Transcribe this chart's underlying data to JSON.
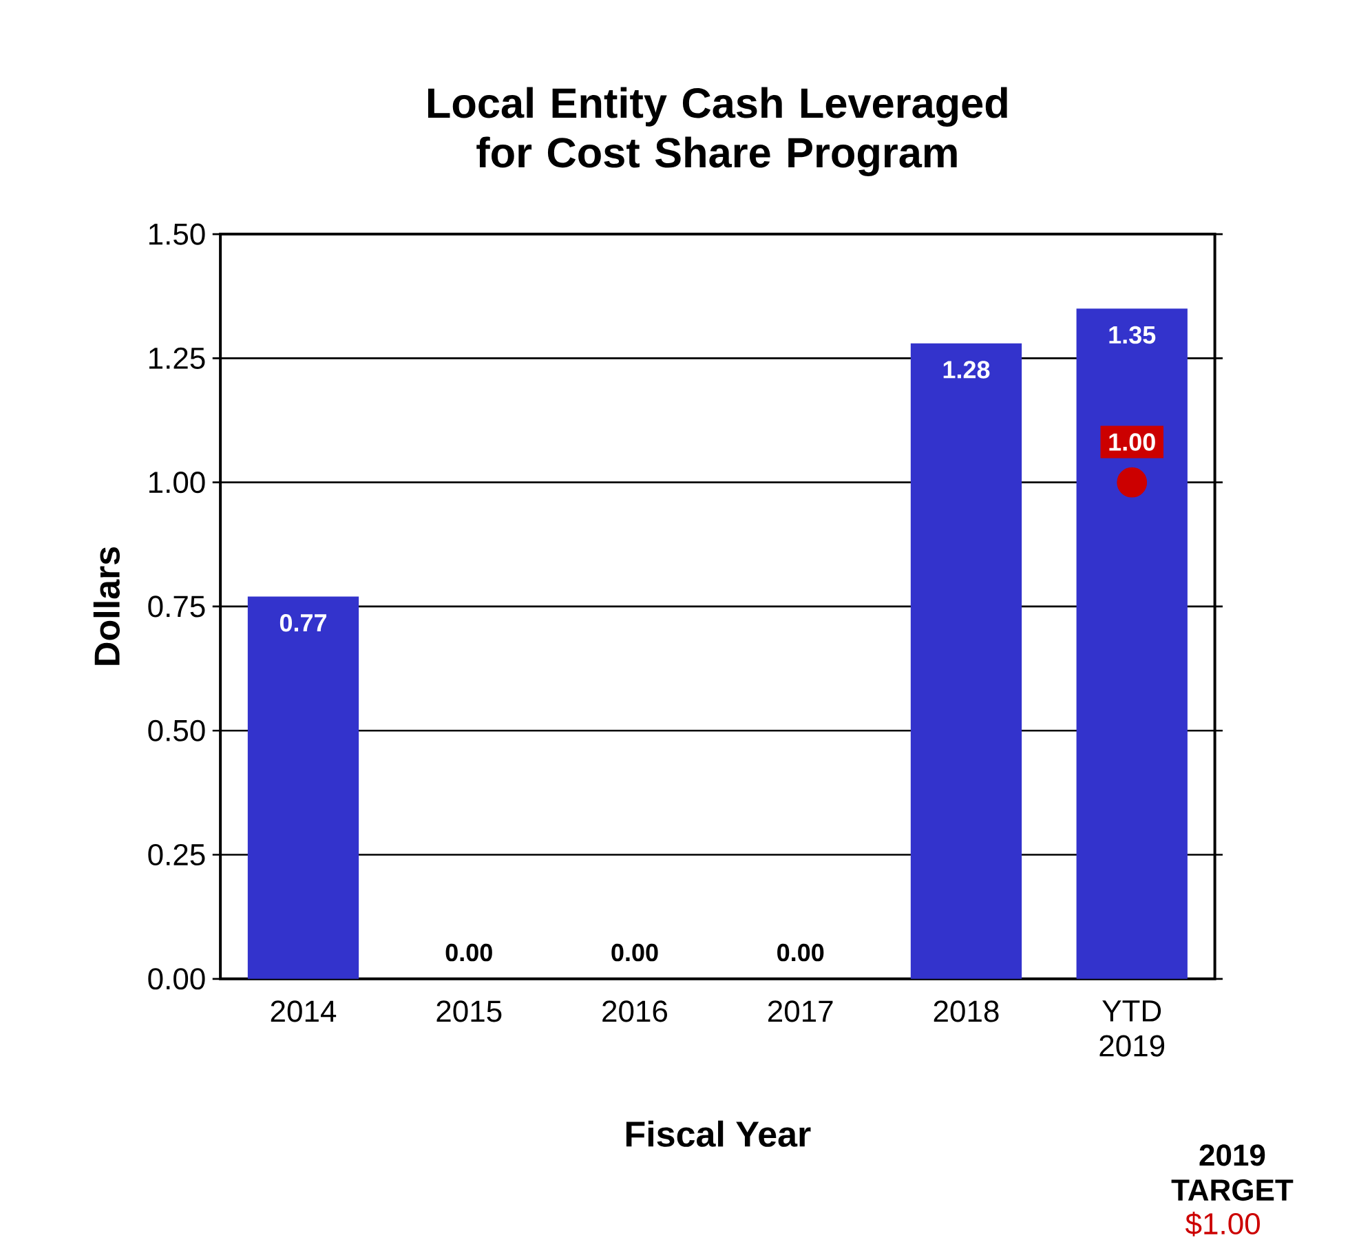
{
  "chart_data": {
    "type": "bar",
    "title": "Local Entity Cash Leveraged for Cost Share Program",
    "xlabel": "Fiscal Year",
    "ylabel": "Dollars",
    "categories": [
      "2014",
      "2015",
      "2016",
      "2017",
      "2018",
      "YTD 2019"
    ],
    "series": [
      {
        "color": "#3333cc",
        "values": [
          0.77,
          0,
          0,
          0,
          1.28,
          1.35
        ],
        "value_labels": [
          "0.77",
          "0.00",
          "0.00",
          "0.00",
          "1.28",
          "1.35"
        ]
      },
      {
        "type": "scatter",
        "color": "#cc0000",
        "x": [
          "YTD 2019"
        ],
        "values": [
          1.0
        ],
        "value_labels": [
          "1.00"
        ],
        "marker": "circle"
      }
    ],
    "ylim": [
      0,
      1.5
    ],
    "yticks": [
      {
        "value": 0,
        "label": "0.00"
      },
      {
        "value": 0.25,
        "label": "0.25"
      },
      {
        "value": 0.5,
        "label": "0.50"
      },
      {
        "value": 0.75,
        "label": "0.75"
      },
      {
        "value": 1.0,
        "label": "1.00"
      },
      {
        "value": 1.25,
        "label": "1.25"
      },
      {
        "value": 1.5,
        "label": "1.50"
      }
    ],
    "grid": "y",
    "annotations": [
      "2019 TARGET",
      "$1.00"
    ]
  }
}
